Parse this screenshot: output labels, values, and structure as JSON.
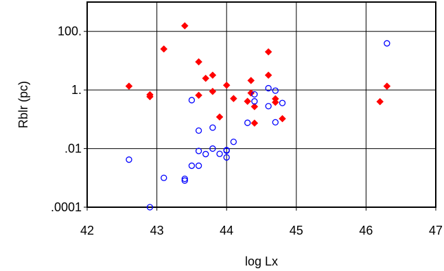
{
  "chart_data": {
    "type": "scatter",
    "xlabel": "log Lx",
    "ylabel": "Rblr (pc)",
    "xlim": [
      42,
      47
    ],
    "ylim": [
      0.0001,
      1000
    ],
    "ylog": true,
    "grid": true,
    "x_ticks": [
      {
        "value": 42,
        "label": "42"
      },
      {
        "value": 43,
        "label": "43"
      },
      {
        "value": 44,
        "label": "44"
      },
      {
        "value": 45,
        "label": "45"
      },
      {
        "value": 46,
        "label": "46"
      },
      {
        "value": 47,
        "label": "47"
      }
    ],
    "y_ticks": [
      {
        "value": 0.0001,
        "label": ".0001"
      },
      {
        "value": 0.01,
        "label": ".01"
      },
      {
        "value": 1,
        "label": "1."
      },
      {
        "value": 100,
        "label": "100."
      }
    ],
    "series": [
      {
        "marker": "diamond",
        "color": "#ff0000",
        "points": [
          [
            42.6,
            1.35
          ],
          [
            42.9,
            0.69
          ],
          [
            42.9,
            0.59
          ],
          [
            43.1,
            25
          ],
          [
            43.4,
            155
          ],
          [
            43.6,
            9.1
          ],
          [
            43.6,
            0.66
          ],
          [
            43.7,
            2.5
          ],
          [
            43.8,
            3.2
          ],
          [
            43.8,
            0.89
          ],
          [
            43.9,
            0.12
          ],
          [
            44.0,
            1.45
          ],
          [
            44.1,
            0.51
          ],
          [
            44.3,
            0.41
          ],
          [
            44.35,
            0.79
          ],
          [
            44.35,
            2.1
          ],
          [
            44.4,
            0.27
          ],
          [
            44.4,
            0.074
          ],
          [
            44.6,
            20
          ],
          [
            44.6,
            3.2
          ],
          [
            44.7,
            0.5
          ],
          [
            44.7,
            0.38
          ],
          [
            44.8,
            0.105
          ],
          [
            46.2,
            0.4
          ],
          [
            46.3,
            1.35
          ]
        ]
      },
      {
        "marker": "circle",
        "color": "#0000ff",
        "points": [
          [
            42.6,
            0.0042
          ],
          [
            42.9,
            0.0001
          ],
          [
            43.1,
            0.001
          ],
          [
            43.4,
            0.00093
          ],
          [
            43.4,
            0.00081
          ],
          [
            43.5,
            0.0026
          ],
          [
            43.5,
            0.45
          ],
          [
            43.6,
            0.0026
          ],
          [
            43.6,
            0.0083
          ],
          [
            43.6,
            0.041
          ],
          [
            43.7,
            0.0065
          ],
          [
            43.8,
            0.01
          ],
          [
            43.8,
            0.052
          ],
          [
            43.9,
            0.0066
          ],
          [
            44.0,
            0.0089
          ],
          [
            44.0,
            0.0085
          ],
          [
            44.0,
            0.005
          ],
          [
            44.1,
            0.017
          ],
          [
            44.3,
            0.076
          ],
          [
            44.4,
            0.71
          ],
          [
            44.4,
            0.41
          ],
          [
            44.6,
            1.15
          ],
          [
            44.6,
            0.28
          ],
          [
            44.7,
            0.95
          ],
          [
            44.7,
            0.079
          ],
          [
            44.8,
            0.36
          ],
          [
            46.3,
            39
          ]
        ]
      }
    ]
  }
}
